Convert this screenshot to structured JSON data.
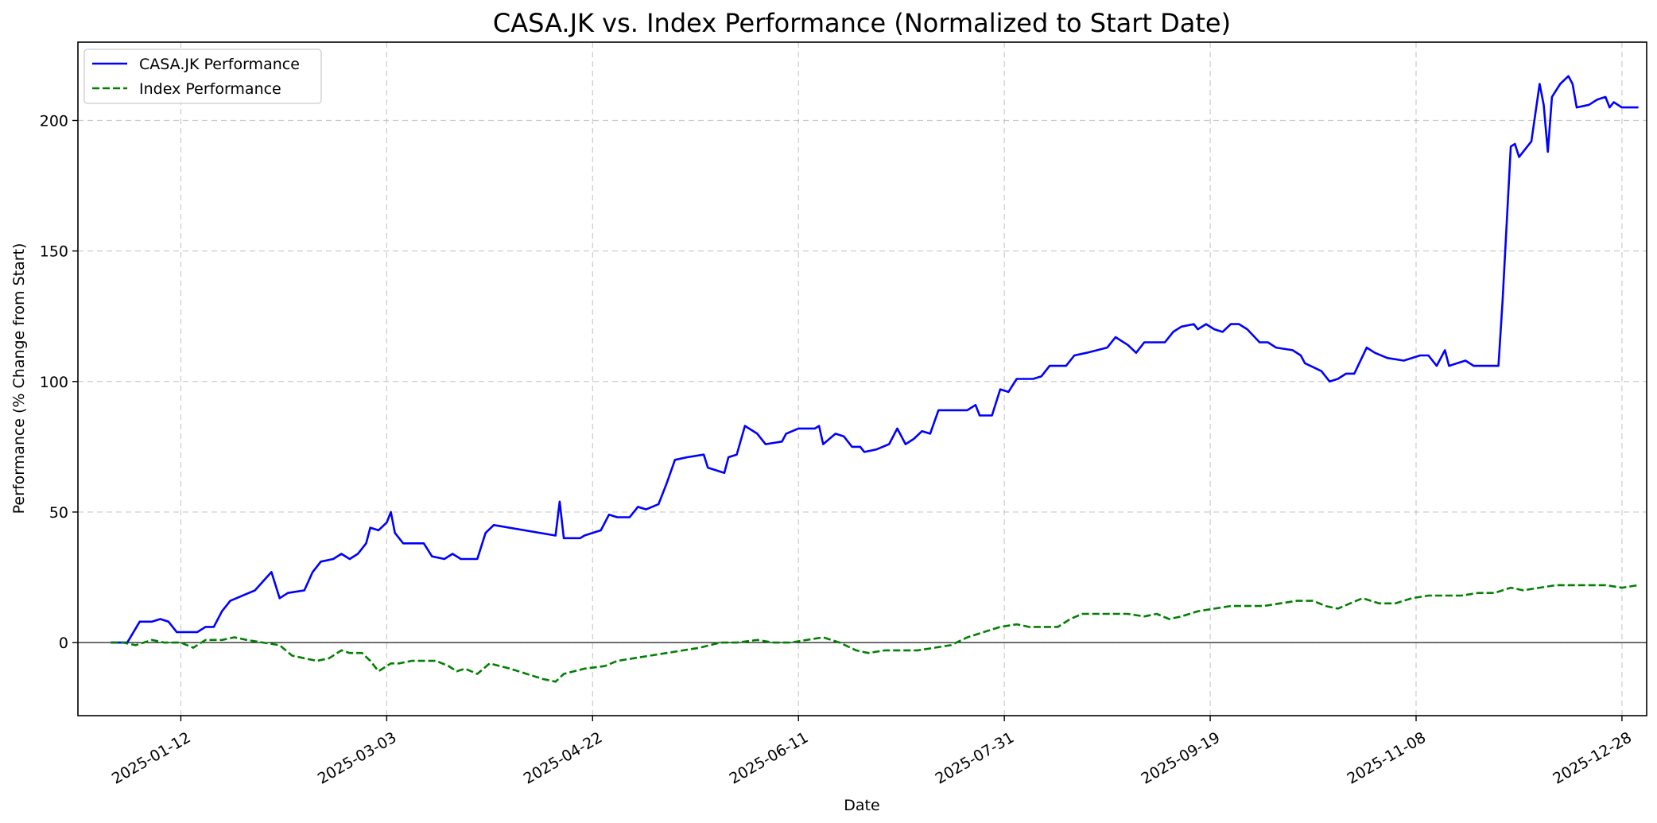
{
  "chart_data": {
    "type": "line",
    "title": "CASA.JK vs. Index Performance (Normalized to Start Date)",
    "xlabel": "Date",
    "ylabel": "Performance (% Change from Start)",
    "xlim": [
      "2024-12-18",
      "2026-01-03"
    ],
    "ylim": [
      -28,
      230
    ],
    "x_ticks": [
      "2025-01-12",
      "2025-03-03",
      "2025-04-22",
      "2025-06-11",
      "2025-07-31",
      "2025-09-19",
      "2025-11-08",
      "2025-12-28"
    ],
    "y_ticks": [
      0,
      50,
      100,
      150,
      200
    ],
    "grid": true,
    "zero_line": true,
    "legend_position": "top-left",
    "series": [
      {
        "name": "CASA.JK Performance",
        "color": "#0000ff",
        "style": "solid",
        "points": [
          [
            "2024-12-26",
            0
          ],
          [
            "2024-12-30",
            0
          ],
          [
            "2025-01-02",
            8
          ],
          [
            "2025-01-05",
            8
          ],
          [
            "2025-01-07",
            9
          ],
          [
            "2025-01-09",
            8
          ],
          [
            "2025-01-11",
            4
          ],
          [
            "2025-01-14",
            4
          ],
          [
            "2025-01-16",
            4
          ],
          [
            "2025-01-18",
            6
          ],
          [
            "2025-01-20",
            6
          ],
          [
            "2025-01-22",
            12
          ],
          [
            "2025-01-24",
            16
          ],
          [
            "2025-01-30",
            20
          ],
          [
            "2025-02-03",
            27
          ],
          [
            "2025-02-05",
            17
          ],
          [
            "2025-02-07",
            19
          ],
          [
            "2025-02-11",
            20
          ],
          [
            "2025-02-13",
            27
          ],
          [
            "2025-02-15",
            31
          ],
          [
            "2025-02-18",
            32
          ],
          [
            "2025-02-20",
            34
          ],
          [
            "2025-02-22",
            32
          ],
          [
            "2025-02-24",
            34
          ],
          [
            "2025-02-26",
            38
          ],
          [
            "2025-02-27",
            44
          ],
          [
            "2025-03-01",
            43
          ],
          [
            "2025-03-03",
            46
          ],
          [
            "2025-03-04",
            50
          ],
          [
            "2025-03-05",
            42
          ],
          [
            "2025-03-07",
            38
          ],
          [
            "2025-03-12",
            38
          ],
          [
            "2025-03-14",
            33
          ],
          [
            "2025-03-17",
            32
          ],
          [
            "2025-03-19",
            34
          ],
          [
            "2025-03-21",
            32
          ],
          [
            "2025-03-25",
            32
          ],
          [
            "2025-03-27",
            42
          ],
          [
            "2025-03-29",
            45
          ],
          [
            "2025-04-13",
            41
          ],
          [
            "2025-04-14",
            54
          ],
          [
            "2025-04-15",
            40
          ],
          [
            "2025-04-19",
            40
          ],
          [
            "2025-04-20",
            41
          ],
          [
            "2025-04-24",
            43
          ],
          [
            "2025-04-26",
            49
          ],
          [
            "2025-04-28",
            48
          ],
          [
            "2025-05-01",
            48
          ],
          [
            "2025-05-03",
            52
          ],
          [
            "2025-05-05",
            51
          ],
          [
            "2025-05-08",
            53
          ],
          [
            "2025-05-10",
            61
          ],
          [
            "2025-05-12",
            70
          ],
          [
            "2025-05-15",
            71
          ],
          [
            "2025-05-19",
            72
          ],
          [
            "2025-05-20",
            67
          ],
          [
            "2025-05-24",
            65
          ],
          [
            "2025-05-25",
            71
          ],
          [
            "2025-05-27",
            72
          ],
          [
            "2025-05-29",
            83
          ],
          [
            "2025-06-01",
            80
          ],
          [
            "2025-06-03",
            76
          ],
          [
            "2025-06-07",
            77
          ],
          [
            "2025-06-08",
            80
          ],
          [
            "2025-06-11",
            82
          ],
          [
            "2025-06-15",
            82
          ],
          [
            "2025-06-16",
            83
          ],
          [
            "2025-06-17",
            76
          ],
          [
            "2025-06-20",
            80
          ],
          [
            "2025-06-22",
            79
          ],
          [
            "2025-06-24",
            75
          ],
          [
            "2025-06-26",
            75
          ],
          [
            "2025-06-27",
            73
          ],
          [
            "2025-06-30",
            74
          ],
          [
            "2025-07-03",
            76
          ],
          [
            "2025-07-05",
            82
          ],
          [
            "2025-07-07",
            76
          ],
          [
            "2025-07-09",
            78
          ],
          [
            "2025-07-11",
            81
          ],
          [
            "2025-07-13",
            80
          ],
          [
            "2025-07-15",
            89
          ],
          [
            "2025-07-18",
            89
          ],
          [
            "2025-07-22",
            89
          ],
          [
            "2025-07-24",
            91
          ],
          [
            "2025-07-25",
            87
          ],
          [
            "2025-07-28",
            87
          ],
          [
            "2025-07-30",
            97
          ],
          [
            "2025-08-01",
            96
          ],
          [
            "2025-08-03",
            101
          ],
          [
            "2025-08-07",
            101
          ],
          [
            "2025-08-09",
            102
          ],
          [
            "2025-08-11",
            106
          ],
          [
            "2025-08-15",
            106
          ],
          [
            "2025-08-17",
            110
          ],
          [
            "2025-08-20",
            111
          ],
          [
            "2025-08-25",
            113
          ],
          [
            "2025-08-27",
            117
          ],
          [
            "2025-08-30",
            114
          ],
          [
            "2025-09-01",
            111
          ],
          [
            "2025-09-03",
            115
          ],
          [
            "2025-09-08",
            115
          ],
          [
            "2025-09-10",
            119
          ],
          [
            "2025-09-12",
            121
          ],
          [
            "2025-09-15",
            122
          ],
          [
            "2025-09-16",
            120
          ],
          [
            "2025-09-18",
            122
          ],
          [
            "2025-09-20",
            120
          ],
          [
            "2025-09-22",
            119
          ],
          [
            "2025-09-24",
            122
          ],
          [
            "2025-09-26",
            122
          ],
          [
            "2025-09-28",
            120
          ],
          [
            "2025-10-01",
            115
          ],
          [
            "2025-10-03",
            115
          ],
          [
            "2025-10-05",
            113
          ],
          [
            "2025-10-09",
            112
          ],
          [
            "2025-10-11",
            110
          ],
          [
            "2025-10-12",
            107
          ],
          [
            "2025-10-16",
            104
          ],
          [
            "2025-10-18",
            100
          ],
          [
            "2025-10-20",
            101
          ],
          [
            "2025-10-22",
            103
          ],
          [
            "2025-10-24",
            103
          ],
          [
            "2025-10-27",
            113
          ],
          [
            "2025-10-29",
            111
          ],
          [
            "2025-11-01",
            109
          ],
          [
            "2025-11-05",
            108
          ],
          [
            "2025-11-07",
            109
          ],
          [
            "2025-11-09",
            110
          ],
          [
            "2025-11-11",
            110
          ],
          [
            "2025-11-13",
            106
          ],
          [
            "2025-11-15",
            112
          ],
          [
            "2025-11-16",
            106
          ],
          [
            "2025-11-18",
            107
          ],
          [
            "2025-11-20",
            108
          ],
          [
            "2025-11-22",
            106
          ],
          [
            "2025-11-28",
            106
          ],
          [
            "2025-11-29",
            131
          ],
          [
            "2025-12-01",
            190
          ],
          [
            "2025-12-02",
            191
          ],
          [
            "2025-12-03",
            186
          ],
          [
            "2025-12-06",
            192
          ],
          [
            "2025-12-08",
            214
          ],
          [
            "2025-12-09",
            206
          ],
          [
            "2025-12-10",
            188
          ],
          [
            "2025-12-11",
            209
          ],
          [
            "2025-12-13",
            214
          ],
          [
            "2025-12-15",
            217
          ],
          [
            "2025-12-16",
            214
          ],
          [
            "2025-12-17",
            205
          ],
          [
            "2025-12-20",
            206
          ],
          [
            "2025-12-22",
            208
          ],
          [
            "2025-12-24",
            209
          ],
          [
            "2025-12-25",
            205
          ],
          [
            "2025-12-26",
            207
          ],
          [
            "2025-12-28",
            205
          ],
          [
            "2026-01-01",
            205
          ]
        ]
      },
      {
        "name": "Index Performance",
        "color": "#008000",
        "style": "dashed",
        "points": [
          [
            "2024-12-26",
            0
          ],
          [
            "2024-12-29",
            0
          ],
          [
            "2025-01-01",
            -1
          ],
          [
            "2025-01-05",
            1
          ],
          [
            "2025-01-08",
            0
          ],
          [
            "2025-01-12",
            0
          ],
          [
            "2025-01-15",
            -2
          ],
          [
            "2025-01-18",
            1
          ],
          [
            "2025-01-22",
            1
          ],
          [
            "2025-01-25",
            2
          ],
          [
            "2025-01-28",
            1
          ],
          [
            "2025-02-01",
            0
          ],
          [
            "2025-02-05",
            -1
          ],
          [
            "2025-02-08",
            -5
          ],
          [
            "2025-02-11",
            -6
          ],
          [
            "2025-02-14",
            -7
          ],
          [
            "2025-02-17",
            -6
          ],
          [
            "2025-02-20",
            -3
          ],
          [
            "2025-02-22",
            -4
          ],
          [
            "2025-02-25",
            -4
          ],
          [
            "2025-02-27",
            -7
          ],
          [
            "2025-03-01",
            -11
          ],
          [
            "2025-03-04",
            -8
          ],
          [
            "2025-03-06",
            -8
          ],
          [
            "2025-03-09",
            -7
          ],
          [
            "2025-03-12",
            -7
          ],
          [
            "2025-03-15",
            -7
          ],
          [
            "2025-03-18",
            -9
          ],
          [
            "2025-03-20",
            -11
          ],
          [
            "2025-03-22",
            -10
          ],
          [
            "2025-03-25",
            -12
          ],
          [
            "2025-03-28",
            -8
          ],
          [
            "2025-04-02",
            -10
          ],
          [
            "2025-04-06",
            -12
          ],
          [
            "2025-04-10",
            -14
          ],
          [
            "2025-04-13",
            -15
          ],
          [
            "2025-04-15",
            -12
          ],
          [
            "2025-04-20",
            -10
          ],
          [
            "2025-04-25",
            -9
          ],
          [
            "2025-04-28",
            -7
          ],
          [
            "2025-05-02",
            -6
          ],
          [
            "2025-05-06",
            -5
          ],
          [
            "2025-05-10",
            -4
          ],
          [
            "2025-05-14",
            -3
          ],
          [
            "2025-05-18",
            -2
          ],
          [
            "2025-05-23",
            0
          ],
          [
            "2025-05-27",
            0
          ],
          [
            "2025-06-01",
            1
          ],
          [
            "2025-06-05",
            0
          ],
          [
            "2025-06-09",
            0
          ],
          [
            "2025-06-13",
            1
          ],
          [
            "2025-06-17",
            2
          ],
          [
            "2025-06-21",
            0
          ],
          [
            "2025-06-25",
            -3
          ],
          [
            "2025-06-28",
            -4
          ],
          [
            "2025-07-02",
            -3
          ],
          [
            "2025-07-06",
            -3
          ],
          [
            "2025-07-10",
            -3
          ],
          [
            "2025-07-14",
            -2
          ],
          [
            "2025-07-18",
            -1
          ],
          [
            "2025-07-22",
            2
          ],
          [
            "2025-07-26",
            4
          ],
          [
            "2025-07-30",
            6
          ],
          [
            "2025-08-03",
            7
          ],
          [
            "2025-08-06",
            6
          ],
          [
            "2025-08-10",
            6
          ],
          [
            "2025-08-13",
            6
          ],
          [
            "2025-08-16",
            9
          ],
          [
            "2025-08-19",
            11
          ],
          [
            "2025-08-22",
            11
          ],
          [
            "2025-08-26",
            11
          ],
          [
            "2025-08-30",
            11
          ],
          [
            "2025-09-03",
            10
          ],
          [
            "2025-09-06",
            11
          ],
          [
            "2025-09-09",
            9
          ],
          [
            "2025-09-12",
            10
          ],
          [
            "2025-09-16",
            12
          ],
          [
            "2025-09-20",
            13
          ],
          [
            "2025-09-24",
            14
          ],
          [
            "2025-09-28",
            14
          ],
          [
            "2025-10-02",
            14
          ],
          [
            "2025-10-06",
            15
          ],
          [
            "2025-10-10",
            16
          ],
          [
            "2025-10-14",
            16
          ],
          [
            "2025-10-17",
            14
          ],
          [
            "2025-10-20",
            13
          ],
          [
            "2025-10-23",
            15
          ],
          [
            "2025-10-26",
            17
          ],
          [
            "2025-10-30",
            15
          ],
          [
            "2025-11-03",
            15
          ],
          [
            "2025-11-07",
            17
          ],
          [
            "2025-11-11",
            18
          ],
          [
            "2025-11-15",
            18
          ],
          [
            "2025-11-19",
            18
          ],
          [
            "2025-11-23",
            19
          ],
          [
            "2025-11-27",
            19
          ],
          [
            "2025-12-01",
            21
          ],
          [
            "2025-12-04",
            20
          ],
          [
            "2025-12-08",
            21
          ],
          [
            "2025-12-12",
            22
          ],
          [
            "2025-12-16",
            22
          ],
          [
            "2025-12-20",
            22
          ],
          [
            "2025-12-24",
            22
          ],
          [
            "2025-12-28",
            21
          ],
          [
            "2026-01-01",
            22
          ]
        ]
      }
    ]
  }
}
